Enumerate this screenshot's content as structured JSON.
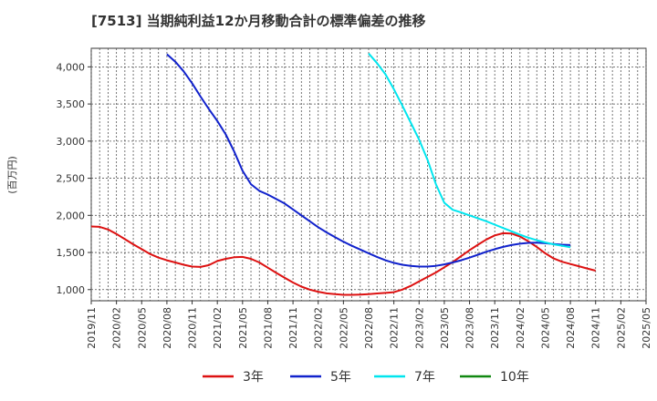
{
  "chart_data": {
    "type": "line",
    "title": "[7513]  当期純利益12か月移動合計の標準偏差の推移",
    "ylabel": "(百万円)",
    "xlabel": "",
    "ylim": [
      850,
      4250
    ],
    "grid": true,
    "y_ticks": [
      {
        "value": 1000,
        "label": "1,000"
      },
      {
        "value": 1500,
        "label": "1,500"
      },
      {
        "value": 2000,
        "label": "2,000"
      },
      {
        "value": 2500,
        "label": "2,500"
      },
      {
        "value": 3000,
        "label": "3,000"
      },
      {
        "value": 3500,
        "label": "3,500"
      },
      {
        "value": 4000,
        "label": "4,000"
      }
    ],
    "x_tick_labels": [
      "2019/11",
      "2020/02",
      "2020/05",
      "2020/08",
      "2020/11",
      "2021/02",
      "2021/05",
      "2021/08",
      "2021/11",
      "2022/02",
      "2022/05",
      "2022/08",
      "2022/11",
      "2023/02",
      "2023/05",
      "2023/08",
      "2023/11",
      "2024/02",
      "2024/05",
      "2024/08",
      "2024/11",
      "2025/02",
      "2025/05"
    ],
    "x_tick_index": [
      0,
      3,
      6,
      9,
      12,
      15,
      18,
      21,
      24,
      27,
      30,
      33,
      36,
      39,
      42,
      45,
      48,
      51,
      54,
      57,
      60,
      63,
      66
    ],
    "x_range": [
      0,
      66
    ],
    "legend_position": "bottom",
    "series": [
      {
        "name": "3年",
        "color": "#dd1111",
        "points": [
          [
            0,
            1850
          ],
          [
            1,
            1845
          ],
          [
            2,
            1810
          ],
          [
            3,
            1750
          ],
          [
            4,
            1680
          ],
          [
            5,
            1610
          ],
          [
            6,
            1545
          ],
          [
            7,
            1480
          ],
          [
            8,
            1430
          ],
          [
            9,
            1395
          ],
          [
            10,
            1365
          ],
          [
            11,
            1335
          ],
          [
            12,
            1310
          ],
          [
            13,
            1305
          ],
          [
            14,
            1330
          ],
          [
            15,
            1385
          ],
          [
            16,
            1415
          ],
          [
            17,
            1435
          ],
          [
            18,
            1440
          ],
          [
            19,
            1415
          ],
          [
            20,
            1365
          ],
          [
            21,
            1295
          ],
          [
            22,
            1225
          ],
          [
            23,
            1160
          ],
          [
            24,
            1095
          ],
          [
            25,
            1040
          ],
          [
            26,
            1000
          ],
          [
            27,
            972
          ],
          [
            28,
            950
          ],
          [
            29,
            938
          ],
          [
            30,
            930
          ],
          [
            31,
            930
          ],
          [
            32,
            934
          ],
          [
            33,
            940
          ],
          [
            34,
            948
          ],
          [
            35,
            955
          ],
          [
            36,
            965
          ],
          [
            37,
            1000
          ],
          [
            38,
            1050
          ],
          [
            39,
            1110
          ],
          [
            40,
            1170
          ],
          [
            41,
            1230
          ],
          [
            42,
            1300
          ],
          [
            43,
            1370
          ],
          [
            44,
            1450
          ],
          [
            45,
            1530
          ],
          [
            46,
            1605
          ],
          [
            47,
            1675
          ],
          [
            48,
            1730
          ],
          [
            49,
            1760
          ],
          [
            50,
            1755
          ],
          [
            51,
            1715
          ],
          [
            52,
            1650
          ],
          [
            53,
            1575
          ],
          [
            54,
            1490
          ],
          [
            55,
            1420
          ],
          [
            56,
            1375
          ],
          [
            57,
            1345
          ],
          [
            58,
            1315
          ],
          [
            59,
            1285
          ],
          [
            60,
            1255
          ]
        ]
      },
      {
        "name": "5年",
        "color": "#1122cc",
        "points": [
          [
            9,
            4170
          ],
          [
            10,
            4070
          ],
          [
            11,
            3940
          ],
          [
            12,
            3780
          ],
          [
            13,
            3600
          ],
          [
            14,
            3430
          ],
          [
            15,
            3270
          ],
          [
            16,
            3090
          ],
          [
            17,
            2860
          ],
          [
            18,
            2600
          ],
          [
            19,
            2420
          ],
          [
            20,
            2330
          ],
          [
            21,
            2280
          ],
          [
            22,
            2220
          ],
          [
            23,
            2160
          ],
          [
            24,
            2080
          ],
          [
            25,
            2000
          ],
          [
            26,
            1920
          ],
          [
            27,
            1840
          ],
          [
            28,
            1770
          ],
          [
            29,
            1705
          ],
          [
            30,
            1645
          ],
          [
            31,
            1590
          ],
          [
            32,
            1540
          ],
          [
            33,
            1490
          ],
          [
            34,
            1440
          ],
          [
            35,
            1395
          ],
          [
            36,
            1360
          ],
          [
            37,
            1335
          ],
          [
            38,
            1320
          ],
          [
            39,
            1310
          ],
          [
            40,
            1310
          ],
          [
            41,
            1320
          ],
          [
            42,
            1340
          ],
          [
            43,
            1365
          ],
          [
            44,
            1395
          ],
          [
            45,
            1430
          ],
          [
            46,
            1470
          ],
          [
            47,
            1510
          ],
          [
            48,
            1545
          ],
          [
            49,
            1575
          ],
          [
            50,
            1600
          ],
          [
            51,
            1618
          ],
          [
            52,
            1630
          ],
          [
            53,
            1632
          ],
          [
            54,
            1625
          ],
          [
            55,
            1615
          ],
          [
            56,
            1605
          ],
          [
            57,
            1600
          ]
        ]
      },
      {
        "name": "7年",
        "color": "#00e5ee",
        "points": [
          [
            33,
            4180
          ],
          [
            34,
            4050
          ],
          [
            35,
            3900
          ],
          [
            36,
            3700
          ],
          [
            37,
            3480
          ],
          [
            38,
            3250
          ],
          [
            39,
            3020
          ],
          [
            40,
            2750
          ],
          [
            41,
            2420
          ],
          [
            42,
            2170
          ],
          [
            43,
            2075
          ],
          [
            44,
            2040
          ],
          [
            45,
            2000
          ],
          [
            46,
            1960
          ],
          [
            47,
            1920
          ],
          [
            48,
            1875
          ],
          [
            49,
            1830
          ],
          [
            50,
            1785
          ],
          [
            51,
            1740
          ],
          [
            52,
            1700
          ],
          [
            53,
            1665
          ],
          [
            54,
            1635
          ],
          [
            55,
            1610
          ],
          [
            56,
            1590
          ],
          [
            57,
            1570
          ]
        ]
      },
      {
        "name": "10年",
        "color": "#118811",
        "points": []
      }
    ]
  }
}
